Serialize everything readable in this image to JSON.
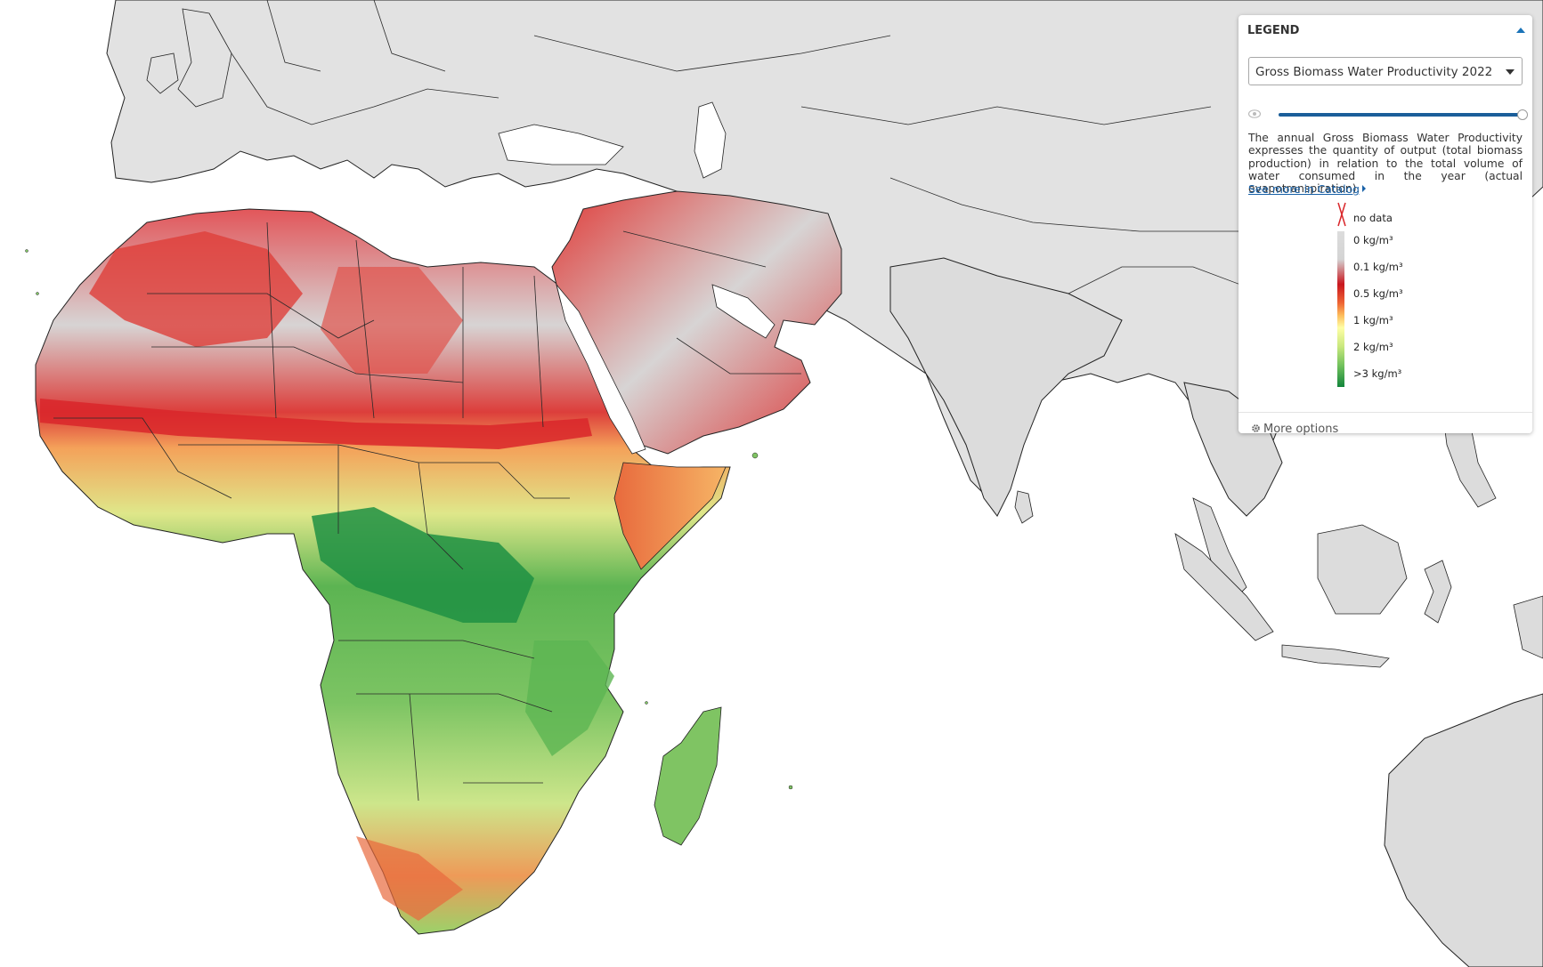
{
  "map": {
    "icon": "map-layer",
    "colors": {
      "land": "#e2e2e2",
      "land_dark": "#d0d0d0",
      "ocean": "#ffffff",
      "border": "#1e1e1e",
      "nodata_gray": "#d6d6d6",
      "dark_red": "#d7191c",
      "orange": "#fdae61",
      "yellow": "#ffffbf",
      "light_green": "#a6d96a",
      "green": "#1a9641"
    }
  },
  "legend": {
    "title": "LEGEND",
    "collapse_icon": "caret-up-icon",
    "layer_select": {
      "selected": "Gross Biomass Water Productivity 2022",
      "icon": "caret-down-icon"
    },
    "opacity": {
      "icon": "eye-icon",
      "value": 1.0
    },
    "description": "The annual Gross Biomass Water Productivity expresses the quantity of output (total biomass production) in relation to the total volume of water consumed in the year (actual evapotranspiration).",
    "catalog_link": "See more in Catalog",
    "nodata_label": "no data",
    "nodata_icon": "x-icon",
    "ramp": [
      {
        "label": "0 kg/m³",
        "color": "#d6d6d6"
      },
      {
        "label": "0.1 kg/m³",
        "color": "#c9161e"
      },
      {
        "label": "0.5 kg/m³",
        "color": "#f48c44"
      },
      {
        "label": "1 kg/m³",
        "color": "#fefea6"
      },
      {
        "label": "2 kg/m³",
        "color": "#8fcf63"
      },
      {
        "label": ">3 kg/m³",
        "color": "#12853c"
      }
    ],
    "more_options": "More options",
    "more_options_icon": "gear-icon"
  }
}
